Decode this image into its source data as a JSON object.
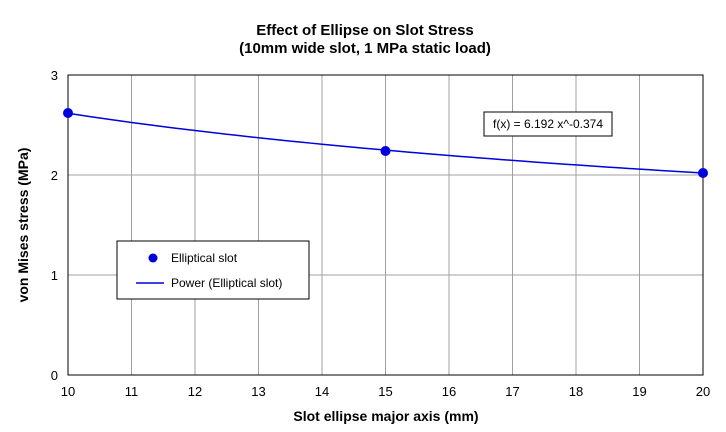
{
  "chart_data": {
    "type": "scatter",
    "title": "Effect of Ellipse on Slot Stress",
    "subtitle": "(10mm wide slot, 1 MPa static load)",
    "xlabel": "Slot ellipse major axis (mm)",
    "ylabel": "von Mises stress (MPa)",
    "xlim": [
      10,
      20
    ],
    "ylim": [
      0,
      3
    ],
    "x_ticks": [
      "10",
      "11",
      "12",
      "13",
      "14",
      "15",
      "16",
      "17",
      "18",
      "19",
      "20"
    ],
    "y_ticks": [
      "0",
      "1",
      "2",
      "3"
    ],
    "grid": true,
    "series": [
      {
        "name": "Elliptical slot",
        "kind": "markers",
        "x": [
          10,
          15,
          20
        ],
        "y": [
          2.62,
          2.24,
          2.02
        ]
      },
      {
        "name": "Power (Elliptical slot)",
        "kind": "trendline",
        "model": "power",
        "coefficient": 6.192,
        "exponent": -0.374
      }
    ],
    "annotation": "f(x) = 6.192 x^-0.374",
    "legend": "left-middle",
    "colors": {
      "series": "#0000dd",
      "grid": "#a0a0a0",
      "frame": "#000000"
    }
  }
}
